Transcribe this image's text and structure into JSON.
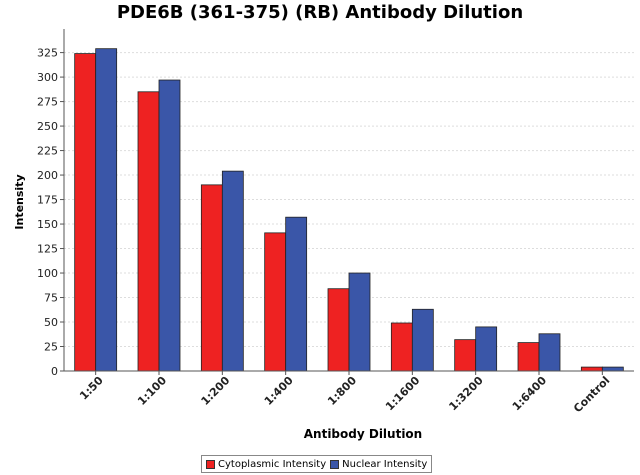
{
  "chart_data": {
    "type": "bar",
    "title": "PDE6B (361-375) (RB) Antibody Dilution",
    "xlabel": "Antibody Dilution",
    "ylabel": "Intensity",
    "categories": [
      "1:50",
      "1:100",
      "1:200",
      "1:400",
      "1:800",
      "1:1600",
      "1:3200",
      "1:6400",
      "Control"
    ],
    "ylim": [
      0,
      345
    ],
    "yticks": [
      0,
      25,
      50,
      75,
      100,
      125,
      150,
      175,
      200,
      225,
      250,
      275,
      300,
      325
    ],
    "grid": true,
    "legend_position": "bottom",
    "series": [
      {
        "name": "Cytoplasmic Intensity",
        "color": "#ee2222",
        "values": [
          324,
          285,
          190,
          141,
          84,
          49,
          32,
          29,
          4
        ]
      },
      {
        "name": "Nuclear Intensity",
        "color": "#3a56a8",
        "values": [
          329,
          297,
          204,
          157,
          100,
          63,
          45,
          38,
          4
        ]
      }
    ]
  }
}
